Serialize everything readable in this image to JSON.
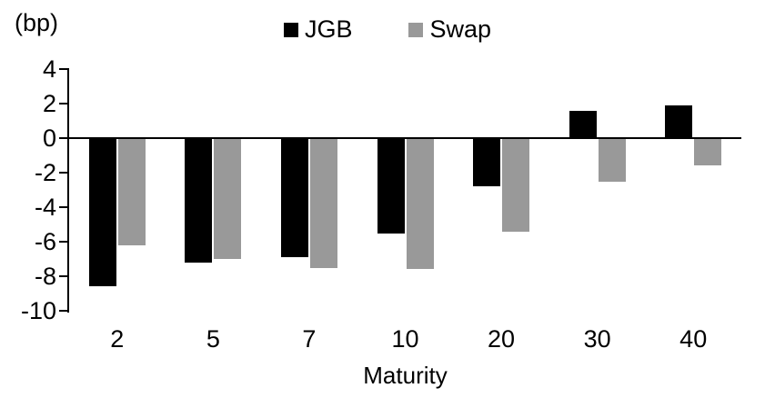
{
  "chart_data": {
    "type": "bar",
    "title": "",
    "unit_label": "(bp)",
    "xlabel": "Maturity",
    "ylabel": "",
    "categories": [
      "2",
      "5",
      "7",
      "10",
      "20",
      "30",
      "40"
    ],
    "series": [
      {
        "name": "JGB",
        "color": "#000000",
        "values": [
          -8.6,
          -7.2,
          -6.9,
          -5.5,
          -2.8,
          1.6,
          1.9
        ]
      },
      {
        "name": "Swap",
        "color": "#999999",
        "values": [
          -6.2,
          -7.0,
          -7.5,
          -7.6,
          -5.4,
          -2.5,
          -1.6
        ]
      }
    ],
    "ylim": [
      -10,
      4
    ],
    "yticks": [
      4,
      2,
      0,
      -2,
      -4,
      -6,
      -8,
      -10
    ],
    "grid": false,
    "legend_position": "top-center",
    "axis_color": "#000000",
    "background": "#ffffff"
  }
}
